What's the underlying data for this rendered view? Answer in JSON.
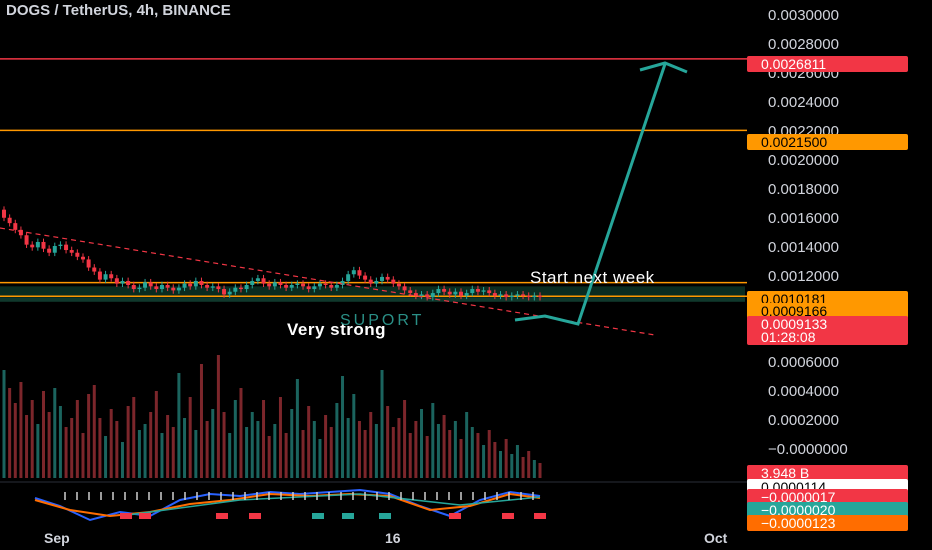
{
  "header": {
    "title": "DOGS / TetherUS, 4h, BINANCE"
  },
  "annotations": {
    "start_next_week": "Start next week",
    "very_strong": "Very strong",
    "support": "SUPORT"
  },
  "chart_data": {
    "type": "candlestick",
    "title": "DOGS / TetherUS, 4h, BINANCE",
    "y_ticks": [
      "0.0030000",
      "0.0028000",
      "0.0026000",
      "0.0024000",
      "0.0022000",
      "0.0020000",
      "0.0018000",
      "0.0016000",
      "0.0014000",
      "0.0012000",
      "0.0010000",
      "0.0006000",
      "0.0004000",
      "0.0002000",
      "−0.0000000"
    ],
    "x_ticks": [
      "Sep",
      "16",
      "Oct"
    ],
    "price_close": [
      0.0015,
      0.00146,
      0.00141,
      0.00137,
      0.0013,
      0.00128,
      0.00132,
      0.00127,
      0.00124,
      0.00129,
      0.0013,
      0.00126,
      0.00124,
      0.00121,
      0.00119,
      0.00113,
      0.0011,
      0.00104,
      0.00108,
      0.00105,
      0.00101,
      0.00103,
      0.001,
      0.00097,
      0.00098,
      0.00102,
      0.00099,
      0.00097,
      0.001,
      0.00098,
      0.00096,
      0.00098,
      0.00101,
      0.00099,
      0.00103,
      0.001,
      0.00098,
      0.00099,
      0.00097,
      0.00093,
      0.00095,
      0.00098,
      0.00097,
      0.001,
      0.00103,
      0.00105,
      0.00101,
      0.00099,
      0.00102,
      0.001,
      0.00098,
      0.001,
      0.00101,
      0.00099,
      0.00097,
      0.00099,
      0.00101,
      0.001,
      0.00098,
      0.001,
      0.00103,
      0.00108,
      0.00111,
      0.00107,
      0.00104,
      0.00101,
      0.00103,
      0.00106,
      0.00104,
      0.00101,
      0.00099,
      0.00096,
      0.00094,
      0.00092,
      0.00093,
      0.00091,
      0.00094,
      0.00097,
      0.00095,
      0.00093,
      0.00095,
      0.00092,
      0.00094,
      0.00097,
      0.00095,
      0.00096,
      0.00094,
      0.00092,
      0.00093,
      0.00091,
      0.00092,
      0.00093,
      0.00092,
      0.00091,
      0.00092,
      0.00091
    ],
    "volume": [
      3.6,
      3.0,
      2.5,
      3.2,
      2.1,
      2.6,
      1.8,
      2.9,
      2.2,
      3.0,
      2.4,
      1.7,
      2.0,
      2.6,
      1.5,
      2.8,
      3.1,
      2.0,
      1.4,
      2.3,
      1.9,
      1.2,
      2.4,
      2.7,
      1.6,
      1.8,
      2.2,
      2.9,
      1.5,
      2.1,
      1.7,
      3.5,
      2.0,
      2.7,
      1.6,
      3.8,
      1.9,
      2.3,
      4.1,
      2.2,
      1.5,
      2.6,
      3.0,
      1.7,
      2.2,
      1.9,
      2.6,
      1.4,
      1.8,
      2.7,
      1.5,
      2.3,
      3.3,
      1.6,
      2.4,
      1.9,
      1.3,
      2.1,
      1.7,
      2.5,
      3.4,
      2.0,
      2.8,
      1.9,
      1.6,
      2.2,
      1.8,
      3.6,
      2.4,
      1.7,
      2.0,
      2.6,
      1.5,
      1.9,
      2.3,
      1.4,
      2.5,
      1.8,
      2.1,
      1.6,
      1.9,
      1.3,
      2.2,
      1.7,
      1.5,
      1.1,
      1.6,
      1.2,
      0.9,
      1.3,
      0.8,
      1.1,
      0.7,
      0.9,
      0.6,
      0.5
    ],
    "levels": [
      {
        "label": "0.0026811",
        "value": 0.0026811,
        "color": "#f23645"
      },
      {
        "label": "0.0021500",
        "value": 0.00215,
        "color": "#ff9800"
      },
      {
        "label": "0.0010181",
        "value": 0.0010181,
        "color": "#ff9800"
      },
      {
        "label": "0.0009166",
        "value": 0.0009166,
        "color": "#ff9800"
      }
    ],
    "current_price": {
      "label": "0.0009133",
      "countdown": "01:28:08",
      "color": "#f23645"
    },
    "volume_badge": {
      "label": "3.948 B",
      "color": "#f23645"
    },
    "indicator_badges": [
      {
        "label": "0.0000114",
        "color": "#ffffff",
        "text_color": "#000000"
      },
      {
        "label": "−0.0000017",
        "color": "#f23645",
        "text_color": "#ffffff"
      },
      {
        "label": "−0.0000020",
        "color": "#26a69a",
        "text_color": "#ffffff"
      },
      {
        "label": "−0.0000123",
        "color": "#ff6d00",
        "text_color": "#ffffff"
      }
    ],
    "colors": {
      "up": "#26a69a",
      "down": "#f23645",
      "projection": "#26a69a",
      "trendline": "#f23645"
    }
  }
}
